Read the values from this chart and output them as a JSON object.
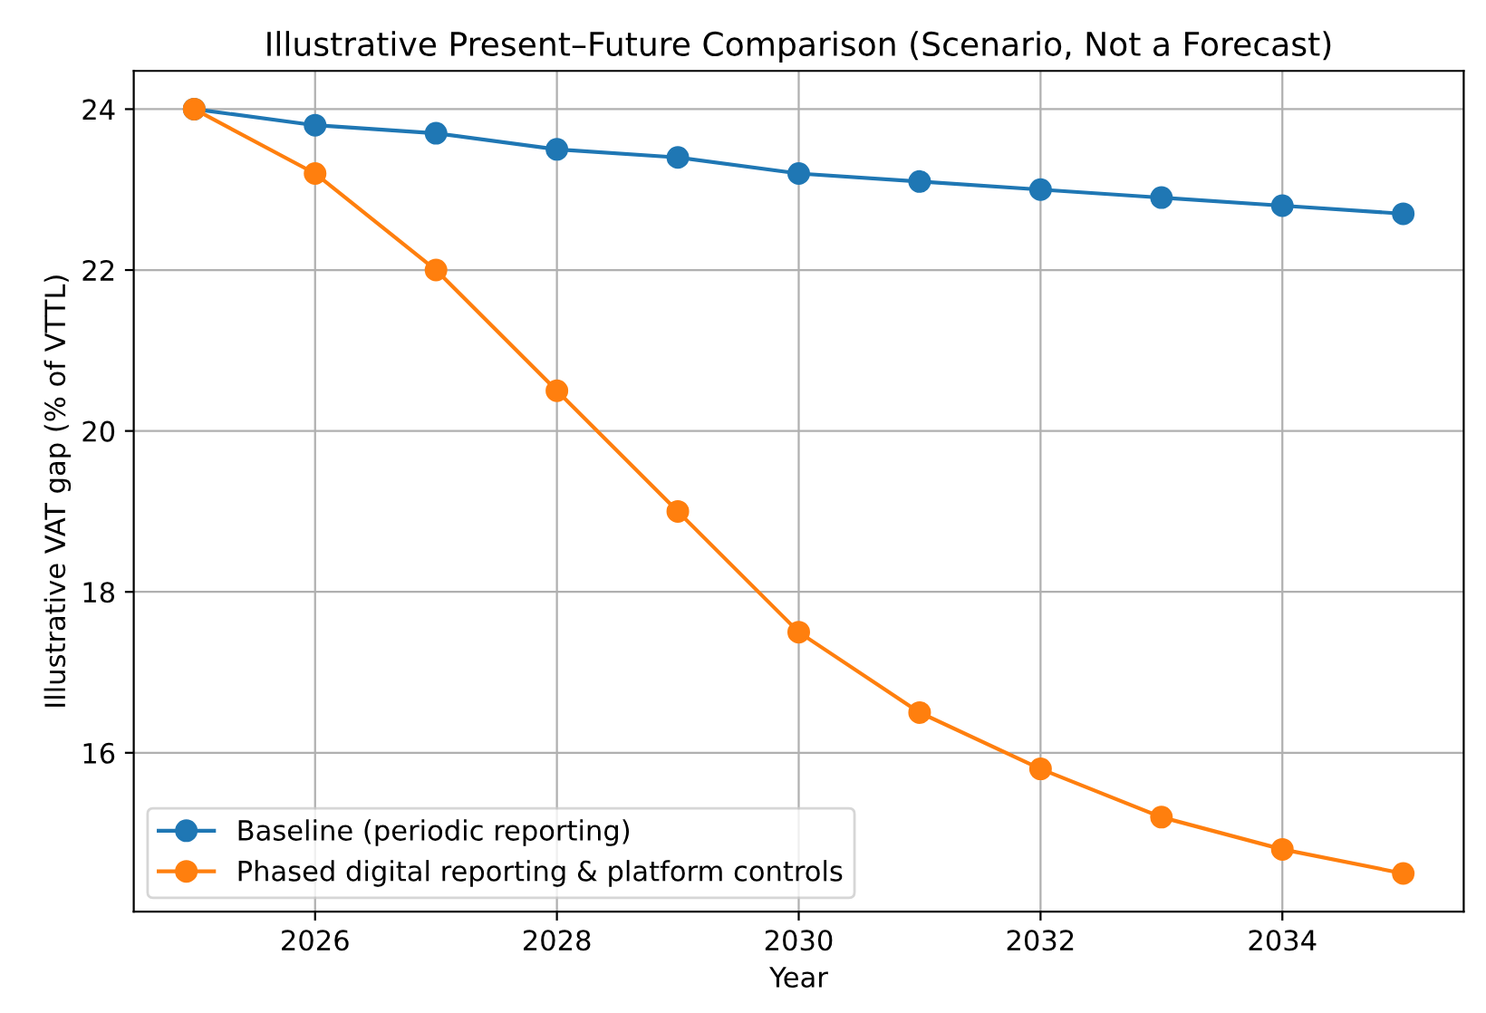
{
  "chart_data": {
    "type": "line",
    "title": "Illustrative Present–Future Comparison (Scenario, Not a Forecast)",
    "xlabel": "Year",
    "ylabel": "Illustrative VAT gap (% of VTTL)",
    "x": [
      2025,
      2026,
      2027,
      2028,
      2029,
      2030,
      2031,
      2032,
      2033,
      2034,
      2035
    ],
    "series": [
      {
        "name": "Baseline (periodic reporting)",
        "color": "#1f77b4",
        "values": [
          24,
          23.8,
          23.7,
          23.5,
          23.4,
          23.2,
          23.1,
          23.0,
          22.9,
          22.8,
          22.7
        ]
      },
      {
        "name": "Phased digital reporting & platform controls",
        "color": "#ff7f0e",
        "values": [
          24,
          23.2,
          22.0,
          20.5,
          19.0,
          17.5,
          16.5,
          15.8,
          15.2,
          14.8,
          14.5
        ]
      }
    ],
    "xlim": [
      2024.5,
      2035.5
    ],
    "xticks": [
      2026,
      2028,
      2030,
      2032,
      2034
    ],
    "ylim": [
      14.025,
      24.475
    ],
    "yticks": [
      16,
      18,
      20,
      22,
      24
    ],
    "grid": true,
    "legend": "lower left",
    "marker": "circle",
    "line_style": "solid"
  }
}
